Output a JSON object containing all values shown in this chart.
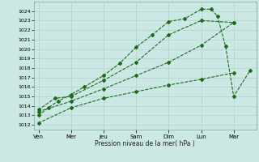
{
  "xlabel": "Pression niveau de la mer( hPa )",
  "ylim_min": 1011.5,
  "ylim_max": 1025.0,
  "yticks": [
    1012,
    1013,
    1014,
    1015,
    1016,
    1017,
    1018,
    1019,
    1020,
    1021,
    1022,
    1023,
    1024
  ],
  "xtick_labels": [
    "Ven",
    "Mer",
    "Jeu",
    "Sam",
    "Dim",
    "Lun",
    "Mar"
  ],
  "xtick_positions": [
    0,
    1,
    2,
    3,
    4,
    5,
    6
  ],
  "xlim_min": -0.15,
  "xlim_max": 6.7,
  "background_color": "#cce8e4",
  "line_color": "#1a6b1a",
  "grid_color": "#aaccc8",
  "line1_x": [
    0,
    1,
    2,
    3,
    4,
    5,
    6
  ],
  "line1_y": [
    1012.2,
    1013.8,
    1014.8,
    1015.5,
    1016.2,
    1016.8,
    1017.5
  ],
  "line2_x": [
    0,
    1,
    2,
    3,
    4,
    5,
    6
  ],
  "line2_y": [
    1013.4,
    1014.5,
    1015.8,
    1017.2,
    1018.6,
    1020.4,
    1022.8
  ],
  "line3_x": [
    0,
    0.5,
    1,
    2,
    3,
    4,
    5,
    6
  ],
  "line3_y": [
    1013.6,
    1014.8,
    1015.0,
    1016.7,
    1018.6,
    1021.5,
    1023.0,
    1022.8
  ],
  "line4_x": [
    0,
    0.3,
    0.6,
    1.0,
    1.4,
    2.0,
    2.5,
    3.0,
    3.5,
    4.0,
    4.5,
    5.0,
    5.3,
    5.5,
    5.75,
    6.0,
    6.5
  ],
  "line4_y": [
    1013.0,
    1013.8,
    1014.5,
    1015.2,
    1016.0,
    1017.2,
    1018.5,
    1020.2,
    1021.5,
    1022.9,
    1023.2,
    1024.2,
    1024.2,
    1023.5,
    1020.3,
    1015.0,
    1017.7
  ]
}
